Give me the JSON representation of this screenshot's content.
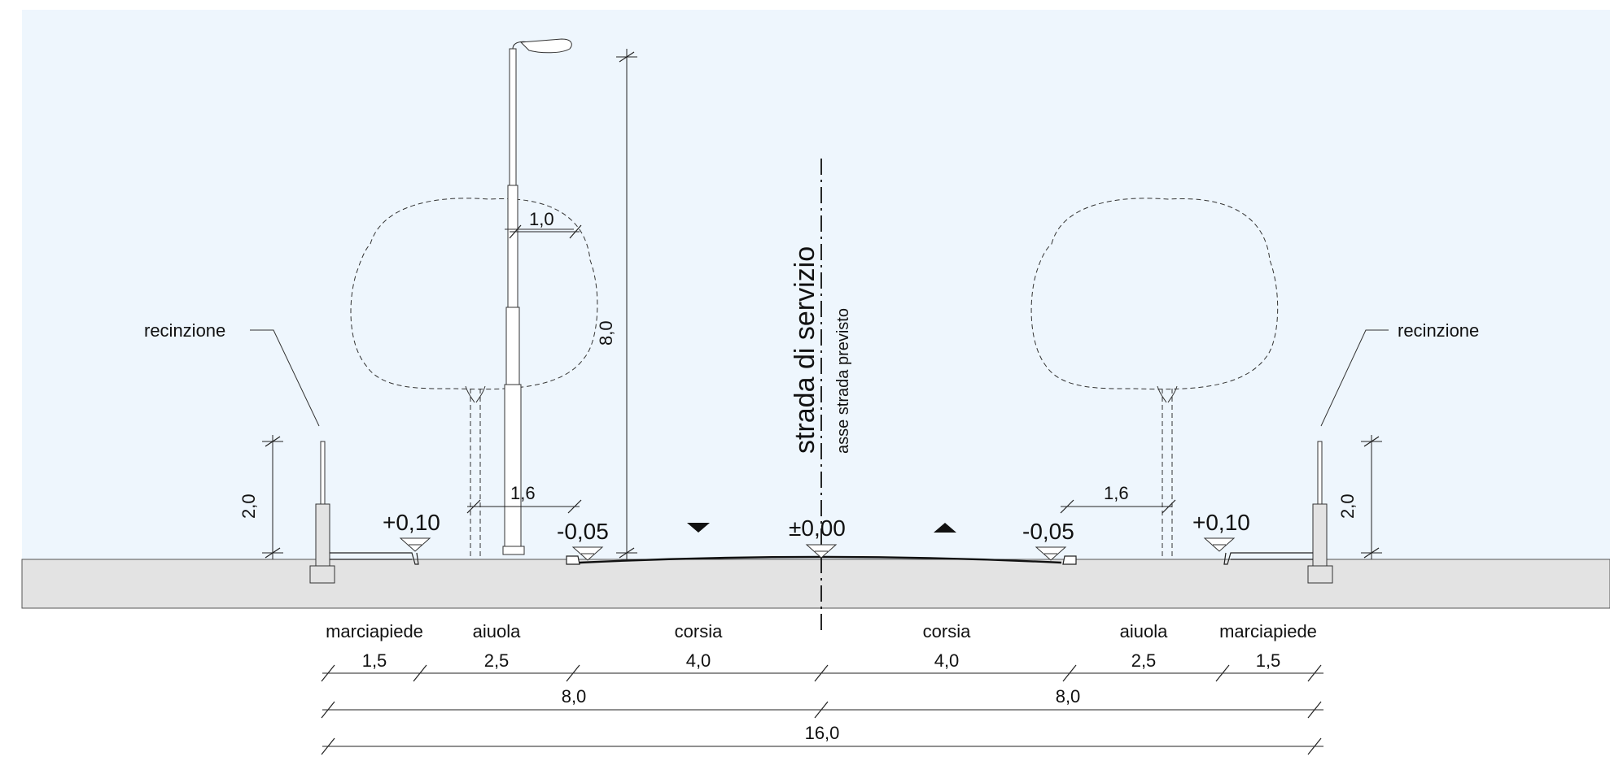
{
  "section": {
    "main_label": "strada di servizio",
    "axis_label": "asse strada previsto"
  },
  "callouts": {
    "fence_left": "recinzione",
    "fence_right": "recinzione"
  },
  "levels": {
    "sidewalk_left": "+0,10",
    "curb_left": "-0,05",
    "axis": "±0,00",
    "curb_right": "-0,05",
    "sidewalk_right": "+0,10"
  },
  "vertical_dims": {
    "fence_left_height": "2,0",
    "fence_right_height": "2,0",
    "lamp_height": "8,0"
  },
  "local_dims": {
    "lamp_arm": "1,0",
    "tree_left_offset": "1,6",
    "tree_right_offset": "1,6"
  },
  "zones": [
    {
      "name": "marciapiede",
      "width": "1,5"
    },
    {
      "name": "aiuola",
      "width": "2,5"
    },
    {
      "name": "corsia",
      "width": "4,0"
    },
    {
      "name": "corsia",
      "width": "4,0"
    },
    {
      "name": "aiuola",
      "width": "2,5"
    },
    {
      "name": "marciapiede",
      "width": "1,5"
    }
  ],
  "half_totals": [
    "8,0",
    "8,0"
  ],
  "overall_total": "16,0",
  "colors": {
    "sky": "#eef6fd",
    "ground": "#e3e3e3",
    "ink": "#222222"
  }
}
